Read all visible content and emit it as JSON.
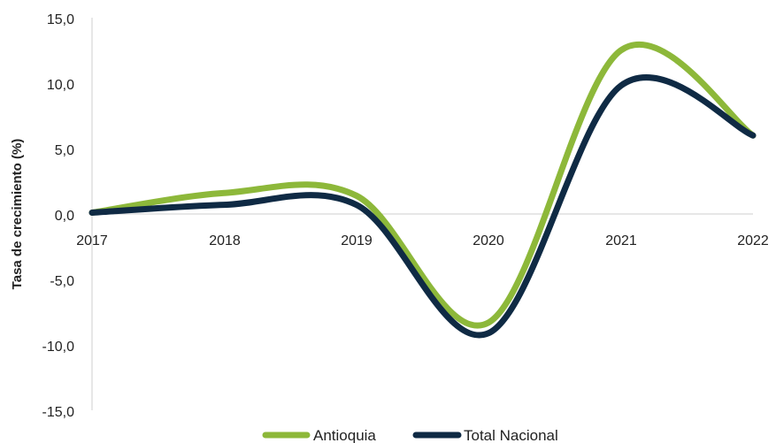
{
  "chart_data": {
    "type": "line",
    "title": "",
    "xlabel": "",
    "ylabel": "Tasa de crecimiento (%)",
    "x": [
      "2017",
      "2018",
      "2019",
      "2020",
      "2021",
      "2022"
    ],
    "ylim": [
      -15,
      15
    ],
    "yticks": [
      "15,0",
      "10,0",
      "5,0",
      "0,0",
      "-5,0",
      "-10,0",
      "-15,0"
    ],
    "grid": false,
    "legend_position": "bottom",
    "series": [
      {
        "name": "Antioquia",
        "color": "#8db83a",
        "values": [
          0.1,
          1.6,
          1.4,
          -8.3,
          12.5,
          6.0
        ]
      },
      {
        "name": "Total Nacional",
        "color": "#0f2a44",
        "values": [
          0.1,
          0.7,
          0.7,
          -9.1,
          9.8,
          6.0
        ]
      }
    ]
  }
}
